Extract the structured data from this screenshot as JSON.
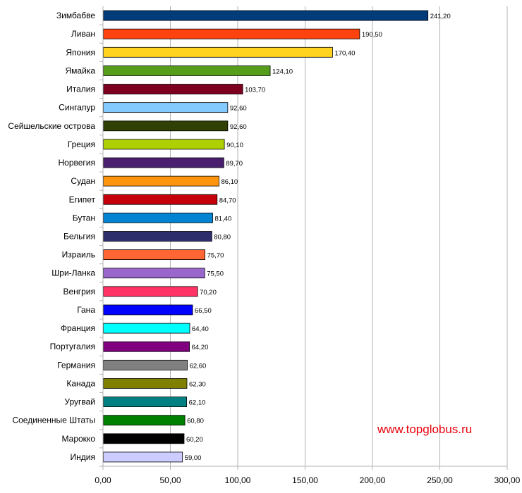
{
  "chart_data": {
    "type": "bar",
    "orientation": "horizontal",
    "categories": [
      "Зимбабве",
      "Ливан",
      "Япония",
      "Ямайка",
      "Италия",
      "Сингапур",
      "Сейшельские острова",
      "Греция",
      "Норвегия",
      "Судан",
      "Египет",
      "Бутан",
      "Бельгия",
      "Израиль",
      "Шри-Ланка",
      "Венгрия",
      "Гана",
      "Франция",
      "Португалия",
      "Германия",
      "Канада",
      "Уругвай",
      "Соединенные Штаты",
      "Марокко",
      "Индия"
    ],
    "values": [
      241.2,
      190.5,
      170.4,
      124.1,
      103.7,
      92.6,
      92.6,
      90.1,
      89.7,
      86.1,
      84.7,
      81.4,
      80.8,
      75.7,
      75.5,
      70.2,
      66.5,
      64.4,
      64.2,
      62.6,
      62.3,
      62.1,
      60.8,
      60.2,
      59.0
    ],
    "value_labels": [
      "241,20",
      "190,50",
      "170,40",
      "124,10",
      "103,70",
      "92,60",
      "92,60",
      "90,10",
      "89,70",
      "86,10",
      "84,70",
      "81,40",
      "80,80",
      "75,70",
      "75,50",
      "70,20",
      "66,50",
      "64,40",
      "64,20",
      "62,60",
      "62,30",
      "62,10",
      "60,80",
      "60,20",
      "59,00"
    ],
    "colors": [
      "#003c7a",
      "#ff420e",
      "#ffd320",
      "#579d1c",
      "#7e0021",
      "#83caff",
      "#314004",
      "#aecf00",
      "#4b1f6f",
      "#ff950e",
      "#c5000b",
      "#0084d1",
      "#2c2d6a",
      "#ff6633",
      "#9966cc",
      "#ff3366",
      "#0000ff",
      "#00ffff",
      "#800080",
      "#808080",
      "#808000",
      "#008080",
      "#008000",
      "#000000",
      "#ccccff"
    ],
    "xlim": [
      0,
      300
    ],
    "xticks": [
      0,
      50,
      100,
      150,
      200,
      250,
      300
    ],
    "xtick_labels": [
      "0,00",
      "50,00",
      "100,00",
      "150,00",
      "200,00",
      "250,00",
      "300,00"
    ],
    "grid": true,
    "title": "",
    "xlabel": "",
    "ylabel": ""
  },
  "watermark": "www.topglobus.ru"
}
